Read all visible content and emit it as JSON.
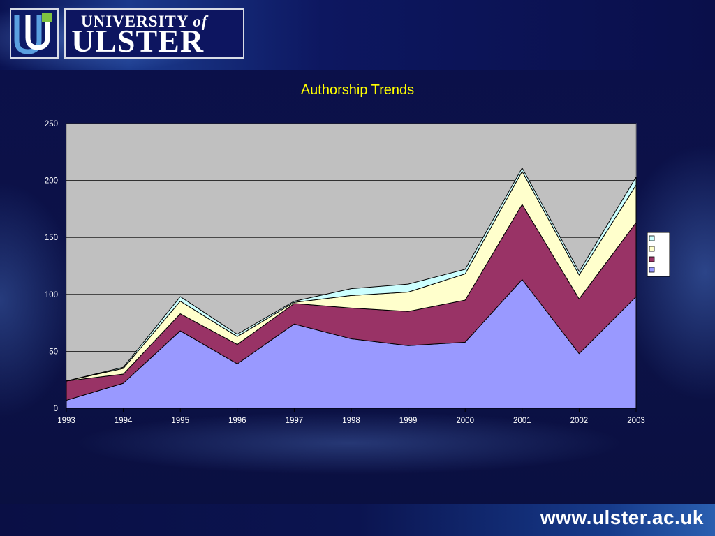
{
  "slide": {
    "logo": {
      "line1": "UNIVERSITY",
      "line1_of": "of",
      "line2": "ULSTER"
    },
    "footer_url": "www.ulster.ac.uk",
    "colors": {
      "background": "#0c1147",
      "title": "#ffff00"
    }
  },
  "chart_data": {
    "type": "area",
    "stacked": true,
    "title": "Authorship Trends",
    "xlabel": "",
    "ylabel": "",
    "x": [
      1993,
      1994,
      1995,
      1996,
      1997,
      1998,
      1999,
      2000,
      2001,
      2002,
      2003
    ],
    "ylim": [
      0,
      250
    ],
    "yticks": [
      0,
      50,
      100,
      150,
      200,
      250
    ],
    "grid": "horizontal",
    "legend_position": "right",
    "plot_background": "#c0c0c0",
    "series": [
      {
        "color": "#9999ff",
        "values": [
          7,
          22,
          68,
          39,
          74,
          61,
          55,
          58,
          113,
          48,
          98
        ]
      },
      {
        "color": "#993366",
        "values": [
          17,
          8,
          15,
          17,
          18,
          27,
          30,
          37,
          66,
          48,
          65
        ]
      },
      {
        "color": "#ffffcc",
        "values": [
          0,
          5,
          11,
          7,
          1,
          11,
          17,
          23,
          29,
          21,
          33
        ]
      },
      {
        "color": "#ccffff",
        "values": [
          0,
          1,
          4,
          2,
          1,
          6,
          7,
          4,
          3,
          3,
          7
        ]
      }
    ]
  }
}
